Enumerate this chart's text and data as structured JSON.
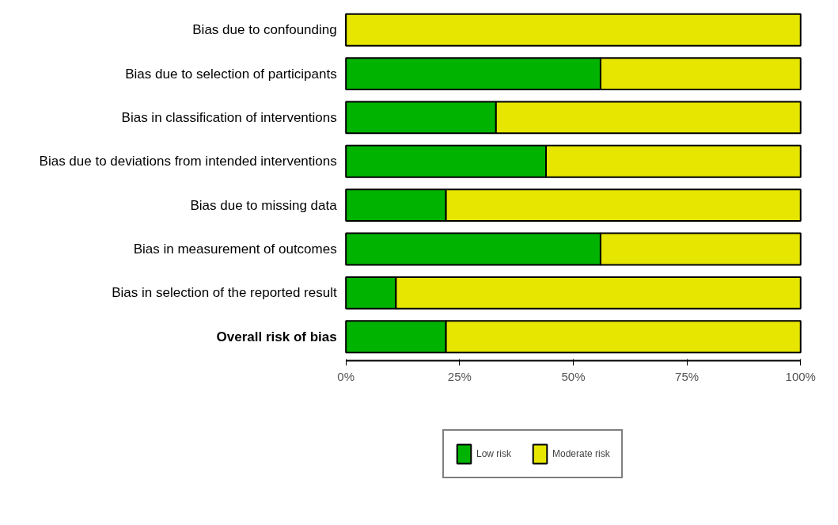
{
  "chart_data": {
    "type": "bar",
    "orientation": "horizontal",
    "stacked": true,
    "categories": [
      "Bias due to confounding",
      "Bias due to selection of participants",
      "Bias in classification of interventions",
      "Bias due to deviations from intended interventions",
      "Bias due to missing data",
      "Bias in measurement of outcomes",
      "Bias in selection of the reported result",
      "Overall risk of bias"
    ],
    "series": [
      {
        "name": "Low risk",
        "color": "#00b300",
        "values": [
          0,
          56,
          33,
          44,
          22,
          56,
          11,
          22
        ]
      },
      {
        "name": "Moderate risk",
        "color": "#e6e600",
        "values": [
          100,
          44,
          67,
          56,
          78,
          44,
          89,
          78
        ]
      }
    ],
    "xlim": [
      0,
      100
    ],
    "xticks": [
      {
        "value": 0,
        "label": "0%"
      },
      {
        "value": 25,
        "label": "25%"
      },
      {
        "value": 50,
        "label": "50%"
      },
      {
        "value": 75,
        "label": "75%"
      },
      {
        "value": 100,
        "label": "100%"
      }
    ],
    "legend": "bottom",
    "grid": false
  }
}
